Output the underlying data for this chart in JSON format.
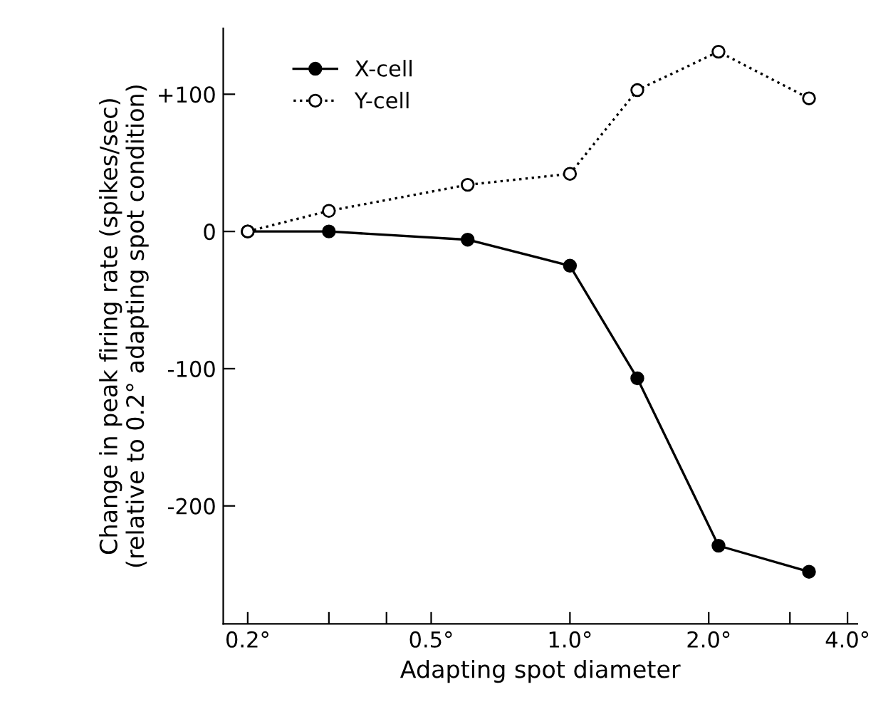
{
  "chart_data": {
    "type": "line",
    "xlabel": "Adapting spot diameter",
    "ylabel": "Change in peak firing rate (spikes/sec)\n(relative to 0.2° adapting spot condition)",
    "log": "x",
    "xlim": [
      0.177,
      4.2
    ],
    "ylim": [
      -286,
      148
    ],
    "xticks": [
      {
        "value": 0.2,
        "label": "0.2°"
      },
      {
        "value": 0.3,
        "label": null
      },
      {
        "value": 0.4,
        "label": null
      },
      {
        "value": 0.5,
        "label": "0.5°"
      },
      {
        "value": 1.0,
        "label": "1.0°"
      },
      {
        "value": 2.0,
        "label": "2.0°"
      },
      {
        "value": 3.0,
        "label": null
      },
      {
        "value": 4.0,
        "label": "4.0°"
      }
    ],
    "yticks": [
      {
        "value": -200,
        "label": "-200"
      },
      {
        "value": -100,
        "label": "-100"
      },
      0,
      {
        "value": 100,
        "label": "+100"
      }
    ],
    "x": [
      0.2,
      0.3,
      0.6,
      1.0,
      1.4,
      2.1,
      3.3
    ],
    "series": [
      {
        "name": "X-cell",
        "color": "#000000",
        "line_style": "solid",
        "values": [
          0,
          0,
          -6,
          -25,
          -107,
          -229,
          -248
        ]
      },
      {
        "name": "Y-cell",
        "color": "#000000",
        "line_style": "dotted",
        "values": [
          0,
          15,
          34,
          42,
          103,
          131,
          97
        ]
      }
    ],
    "marker": "circle",
    "legend": "top left",
    "grid": false
  }
}
